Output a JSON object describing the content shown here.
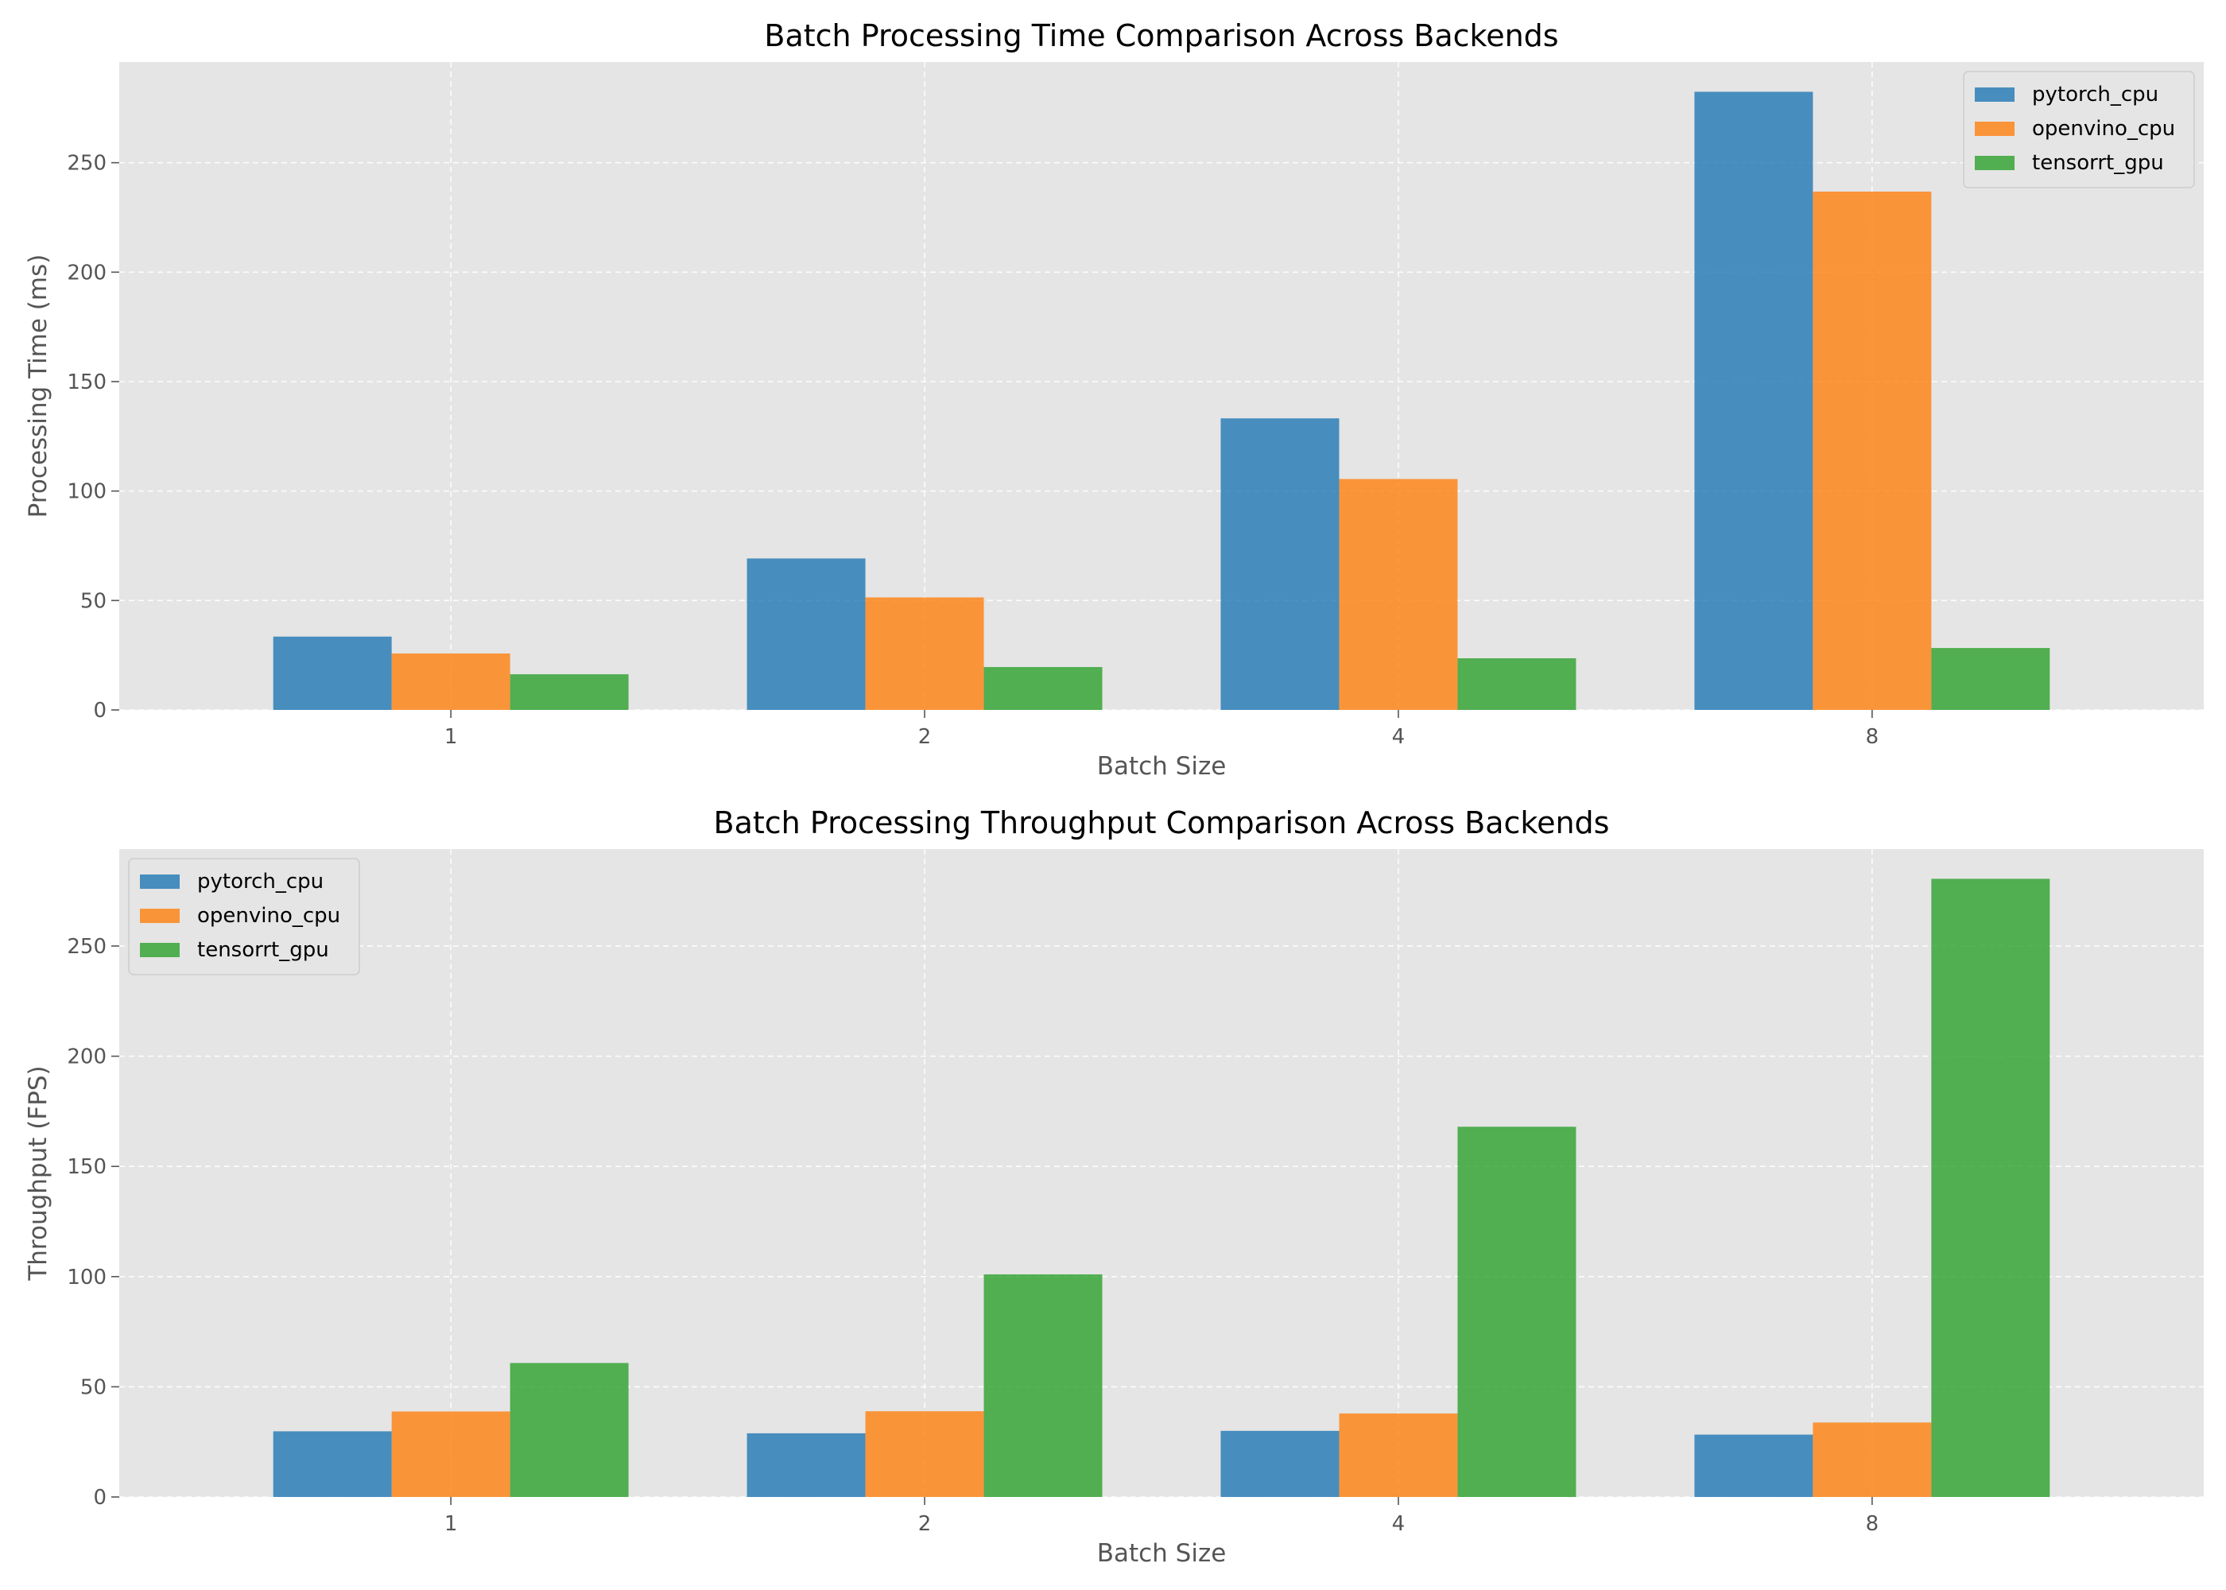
{
  "chart_data": [
    {
      "type": "bar",
      "title": "Batch Processing Time Comparison Across Backends",
      "xlabel": "Batch Size",
      "ylabel": "Processing Time (ms)",
      "categories": [
        "1",
        "2",
        "4",
        "8"
      ],
      "ylim": [
        0,
        296
      ],
      "yticks": [
        0,
        50,
        100,
        150,
        200,
        250
      ],
      "grid": true,
      "legend_position": "top-right",
      "series": [
        {
          "name": "pytorch_cpu",
          "color": "#1f77b4",
          "values": [
            33.5,
            69.2,
            133.2,
            282.4
          ]
        },
        {
          "name": "openvino_cpu",
          "color": "#ff7f0e",
          "values": [
            25.8,
            51.4,
            105.5,
            236.8
          ]
        },
        {
          "name": "tensorrt_gpu",
          "color": "#2ca02c",
          "values": [
            16.3,
            19.6,
            23.6,
            28.3
          ]
        }
      ]
    },
    {
      "type": "bar",
      "title": "Batch Processing Throughput Comparison Across Backends",
      "xlabel": "Batch Size",
      "ylabel": "Throughput (FPS)",
      "categories": [
        "1",
        "2",
        "4",
        "8"
      ],
      "ylim": [
        0,
        294
      ],
      "yticks": [
        0,
        50,
        100,
        150,
        200,
        250
      ],
      "grid": true,
      "legend_position": "top-left",
      "series": [
        {
          "name": "pytorch_cpu",
          "color": "#1f77b4",
          "values": [
            29.8,
            28.9,
            30.0,
            28.3
          ]
        },
        {
          "name": "openvino_cpu",
          "color": "#ff7f0e",
          "values": [
            38.8,
            38.9,
            37.9,
            33.8
          ]
        },
        {
          "name": "tensorrt_gpu",
          "color": "#2ca02c",
          "values": [
            60.8,
            101.0,
            168.0,
            280.5
          ]
        }
      ]
    }
  ]
}
